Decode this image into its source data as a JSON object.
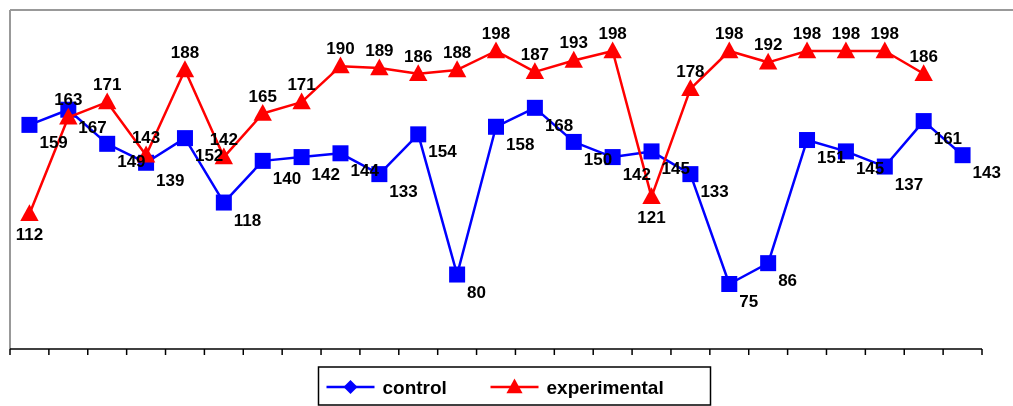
{
  "chart_data": {
    "type": "line",
    "legend": "bottom",
    "grid": false,
    "data_labels": true,
    "categories": [
      null,
      null,
      null,
      null,
      null,
      null,
      null,
      null,
      null,
      null,
      null,
      null,
      null,
      null,
      null,
      null,
      null,
      null,
      null,
      null,
      null,
      null,
      null,
      null,
      null
    ],
    "series": [
      {
        "name": "control",
        "color": "#0000ff",
        "marker": "square",
        "axis": "y",
        "values": [
          159,
          167,
          149,
          139,
          152,
          118,
          140,
          142,
          144,
          133,
          154,
          80,
          158,
          168,
          150,
          142,
          145,
          133,
          75,
          86,
          151,
          145,
          137,
          161,
          143
        ]
      },
      {
        "name": "experimental",
        "color": "#ff0000",
        "marker": "triangle",
        "axis": "y",
        "values": [
          112,
          163,
          171,
          143,
          188,
          142,
          165,
          171,
          190,
          189,
          186,
          188,
          198,
          187,
          193,
          198,
          121,
          178,
          198,
          192,
          198,
          198,
          198,
          186,
          null
        ]
      }
    ]
  }
}
